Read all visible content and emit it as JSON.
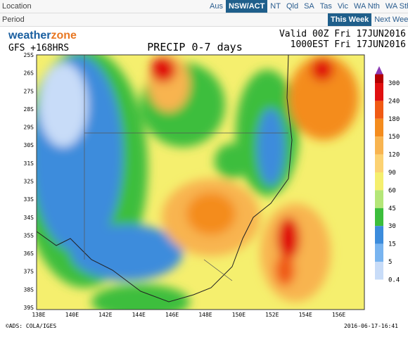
{
  "nav": {
    "location_label": "Location",
    "location_tabs": [
      "Aus",
      "NSW/ACT",
      "NT",
      "Qld",
      "SA",
      "Tas",
      "Vic",
      "WA Nth",
      "WA Sth"
    ],
    "location_selected": 1,
    "period_label": "Period",
    "period_tabs": [
      "This Week",
      "Next Week"
    ],
    "period_selected": 0
  },
  "map": {
    "logo_a": "weather",
    "logo_b": "zone",
    "model": "GFS +168HRS",
    "title": "PRECIP 0-7 days",
    "valid": "Valid 00Z Fri 17JUN2016",
    "issued": "1000EST Fri 17JUN2016",
    "lat_labels": [
      "25S",
      "26S",
      "27S",
      "28S",
      "29S",
      "30S",
      "31S",
      "32S",
      "33S",
      "34S",
      "35S",
      "36S",
      "37S",
      "38S",
      "39S"
    ],
    "lon_labels": [
      "138E",
      "140E",
      "142E",
      "144E",
      "146E",
      "148E",
      "150E",
      "152E",
      "154E",
      "156E"
    ],
    "colorbar": [
      {
        "label": "300",
        "color": "#b40000"
      },
      {
        "label": "240",
        "color": "#e01010"
      },
      {
        "label": "180",
        "color": "#f05a14"
      },
      {
        "label": "150",
        "color": "#f48c1e"
      },
      {
        "label": "120",
        "color": "#f8b450"
      },
      {
        "label": "90",
        "color": "#fcd272"
      },
      {
        "label": "60",
        "color": "#f5ef6e"
      },
      {
        "label": "45",
        "color": "#b4e678"
      },
      {
        "label": "30",
        "color": "#3cbe3c"
      },
      {
        "label": "15",
        "color": "#3c8cdc"
      },
      {
        "label": "5",
        "color": "#78b4f0"
      },
      {
        "label": "0.4",
        "color": "#c8dcf8"
      }
    ],
    "credit": "©ADS: COLA/IGES",
    "timestamp": "2016-06-17-16:41"
  }
}
